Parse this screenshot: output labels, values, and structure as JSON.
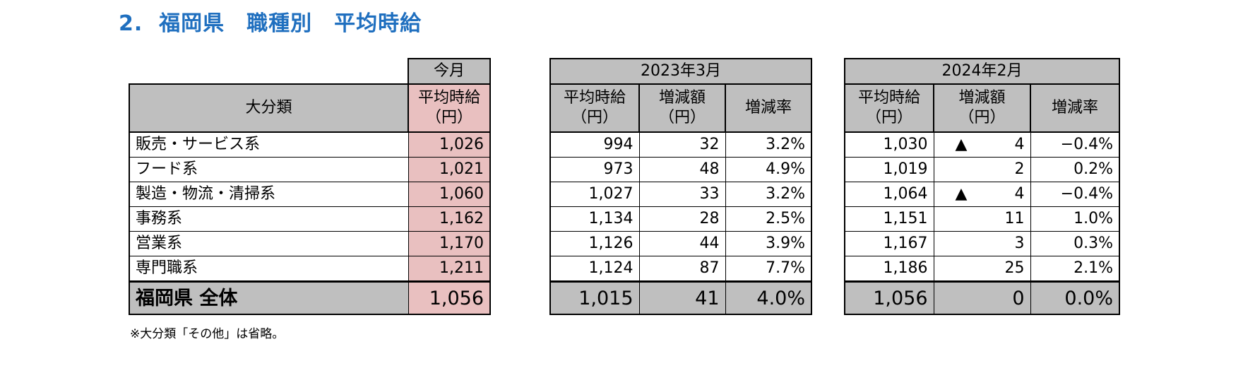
{
  "title": "2.  福岡県　職種別　平均時給",
  "headers": {
    "current_group": "今月",
    "group_2023": "2023年3月",
    "group_2024": "2024年2月",
    "category": "大分類",
    "avg_wage": "平均時給",
    "unit_yen": "（円）",
    "change_amount": "増減額",
    "change_rate": "増減率"
  },
  "rows": [
    {
      "label": "販売・サービス系",
      "current": "1,026",
      "w2023": "994",
      "d2023": "32",
      "r2023": "3.2%",
      "w2024": "1,030",
      "mark": "▲",
      "d2024": "4",
      "r2024": "−0.4%"
    },
    {
      "label": "フード系",
      "current": "1,021",
      "w2023": "973",
      "d2023": "48",
      "r2023": "4.9%",
      "w2024": "1,019",
      "mark": "",
      "d2024": "2",
      "r2024": "0.2%"
    },
    {
      "label": "製造・物流・清掃系",
      "current": "1,060",
      "w2023": "1,027",
      "d2023": "33",
      "r2023": "3.2%",
      "w2024": "1,064",
      "mark": "▲",
      "d2024": "4",
      "r2024": "−0.4%"
    },
    {
      "label": "事務系",
      "current": "1,162",
      "w2023": "1,134",
      "d2023": "28",
      "r2023": "2.5%",
      "w2024": "1,151",
      "mark": "",
      "d2024": "11",
      "r2024": "1.0%"
    },
    {
      "label": "営業系",
      "current": "1,170",
      "w2023": "1,126",
      "d2023": "44",
      "r2023": "3.9%",
      "w2024": "1,167",
      "mark": "",
      "d2024": "3",
      "r2024": "0.3%"
    },
    {
      "label": "専門職系",
      "current": "1,211",
      "w2023": "1,124",
      "d2023": "87",
      "r2023": "7.7%",
      "w2024": "1,186",
      "mark": "",
      "d2024": "25",
      "r2024": "2.1%"
    }
  ],
  "total": {
    "label": "福岡県 全体",
    "current": "1,056",
    "w2023": "1,015",
    "d2023": "41",
    "r2023": "4.0%",
    "w2024": "1,056",
    "mark": "",
    "d2024": "0",
    "r2024": "0.0%"
  },
  "note": "※大分類「その他」は省略。",
  "colors": {
    "title": "#1f6fbf",
    "header_gray": "#bfbfbf",
    "current_pink": "#e9c0c0"
  }
}
